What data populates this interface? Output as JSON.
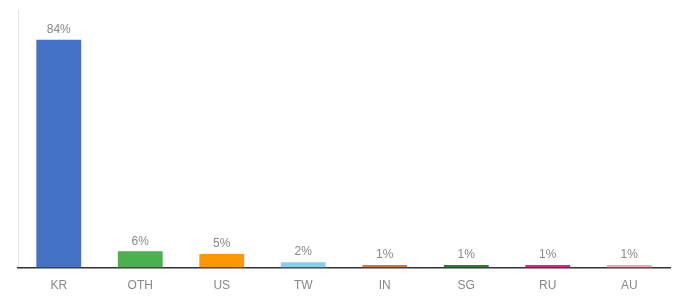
{
  "chart_data": {
    "type": "bar",
    "categories": [
      "KR",
      "OTH",
      "US",
      "TW",
      "IN",
      "SG",
      "RU",
      "AU"
    ],
    "values": [
      84,
      6,
      5,
      2,
      1,
      1,
      1,
      1
    ],
    "value_labels": [
      "84%",
      "6%",
      "5%",
      "2%",
      "1%",
      "1%",
      "1%",
      "1%"
    ],
    "colors": [
      "#4472c4",
      "#4caf50",
      "#ff9800",
      "#87ceeb",
      "#c87941",
      "#2e7d32",
      "#e91e8c",
      "#f4a7b9"
    ],
    "ylim": [
      0,
      95
    ],
    "grid": false,
    "data_labels": true,
    "tick_labels": "x"
  }
}
